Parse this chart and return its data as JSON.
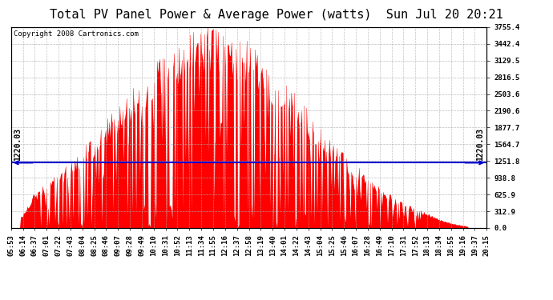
{
  "title": "Total PV Panel Power & Average Power (watts)  Sun Jul 20 20:21",
  "copyright": "Copyright 2008 Cartronics.com",
  "ylabel_right_ticks": [
    0.0,
    312.9,
    625.9,
    938.8,
    1251.8,
    1564.7,
    1877.7,
    2190.6,
    2503.6,
    2816.5,
    3129.5,
    3442.4,
    3755.4
  ],
  "avg_power": 1220.03,
  "avg_label": "1220.03",
  "ymax": 3755.4,
  "bar_color": "#FF0000",
  "avg_line_color": "#0000CC",
  "background_color": "#FFFFFF",
  "grid_color": "#AAAAAA",
  "title_fontsize": 11,
  "copyright_fontsize": 6.5,
  "tick_fontsize": 6.5,
  "avg_fontsize": 7,
  "x_tick_labels": [
    "05:53",
    "06:14",
    "06:37",
    "07:01",
    "07:22",
    "07:43",
    "08:04",
    "08:25",
    "08:46",
    "09:07",
    "09:28",
    "09:49",
    "10:10",
    "10:31",
    "10:52",
    "11:13",
    "11:34",
    "11:55",
    "12:16",
    "12:37",
    "12:58",
    "13:19",
    "13:40",
    "14:01",
    "14:22",
    "14:43",
    "15:04",
    "15:25",
    "15:46",
    "16:07",
    "16:28",
    "16:49",
    "17:10",
    "17:31",
    "17:52",
    "18:13",
    "18:34",
    "18:55",
    "19:16",
    "19:37",
    "20:15"
  ]
}
